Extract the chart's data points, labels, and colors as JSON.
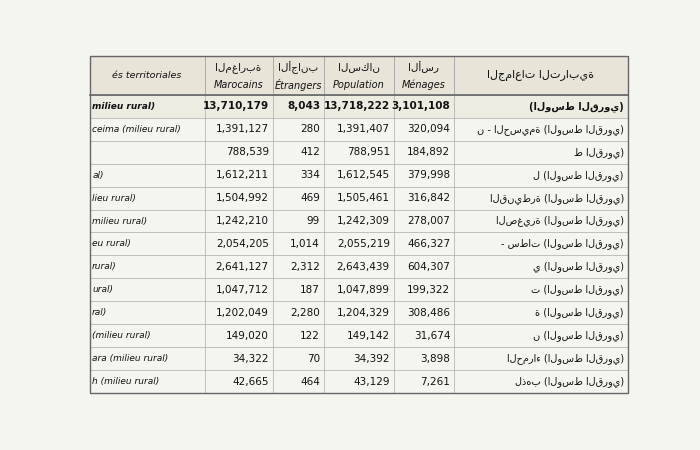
{
  "col_headers_arabic": [
    "المغاربة",
    "الأجانب",
    "السكان",
    "الأسر",
    "الجماعات الترابية"
  ],
  "col_headers_latin": [
    "Marocains",
    "Étrangers",
    "Population",
    "Ménages",
    ""
  ],
  "left_header": "és territoriales",
  "rows": [
    {
      "left": "milieu rural)",
      "marocains": "13,710,179",
      "etrangers": "8,043",
      "population": "13,718,222",
      "menages": "3,101,108",
      "arabic": "(الوسط القروي)",
      "bold": true
    },
    {
      "left": "ceima (milieu rural)",
      "marocains": "1,391,127",
      "etrangers": "280",
      "population": "1,391,407",
      "menages": "320,094",
      "arabic": "ن - الحسيمة (الوسط القروي)",
      "bold": false
    },
    {
      "left": "",
      "marocains": "788,539",
      "etrangers": "412",
      "population": "788,951",
      "menages": "184,892",
      "arabic": "ط القروي)",
      "bold": false
    },
    {
      "left": "al)",
      "marocains": "1,612,211",
      "etrangers": "334",
      "population": "1,612,545",
      "menages": "379,998",
      "arabic": "ل (الوسط القروي)",
      "bold": false
    },
    {
      "left": "lieu rural)",
      "marocains": "1,504,992",
      "etrangers": "469",
      "population": "1,505,461",
      "menages": "316,842",
      "arabic": "القنيطرة (الوسط القروي)",
      "bold": false
    },
    {
      "left": "milieu rural)",
      "marocains": "1,242,210",
      "etrangers": "99",
      "population": "1,242,309",
      "menages": "278,007",
      "arabic": "الصغيرة (الوسط القروي)",
      "bold": false
    },
    {
      "left": "eu rural)",
      "marocains": "2,054,205",
      "etrangers": "1,014",
      "population": "2,055,219",
      "menages": "466,327",
      "arabic": "- سطات (الوسط القروي)",
      "bold": false
    },
    {
      "left": "rural)",
      "marocains": "2,641,127",
      "etrangers": "2,312",
      "population": "2,643,439",
      "menages": "604,307",
      "arabic": "ي (الوسط القروي)",
      "bold": false
    },
    {
      "left": "ural)",
      "marocains": "1,047,712",
      "etrangers": "187",
      "population": "1,047,899",
      "menages": "199,322",
      "arabic": "ت (الوسط القروي)",
      "bold": false
    },
    {
      "left": "ral)",
      "marocains": "1,202,049",
      "etrangers": "2,280",
      "population": "1,204,329",
      "menages": "308,486",
      "arabic": "ة (الوسط القروي)",
      "bold": false
    },
    {
      "left": "(milieu rural)",
      "marocains": "149,020",
      "etrangers": "122",
      "population": "149,142",
      "menages": "31,674",
      "arabic": "ن (الوسط القروي)",
      "bold": false
    },
    {
      "left": "ara (milieu rural)",
      "marocains": "34,322",
      "etrangers": "70",
      "population": "34,392",
      "menages": "3,898",
      "arabic": "الحمراء (الوسط القروي)",
      "bold": false
    },
    {
      "left": "h (milieu rural)",
      "marocains": "42,665",
      "etrangers": "464",
      "population": "43,129",
      "menages": "7,261",
      "arabic": "لذهب (الوسط القروي)",
      "bold": false
    }
  ],
  "bg_color": "#f5f5f0",
  "header_bg": "#e8e4d8",
  "border_color": "#aaaaaa",
  "text_color": "#111111",
  "bold_row_bg": "#eeebe0"
}
